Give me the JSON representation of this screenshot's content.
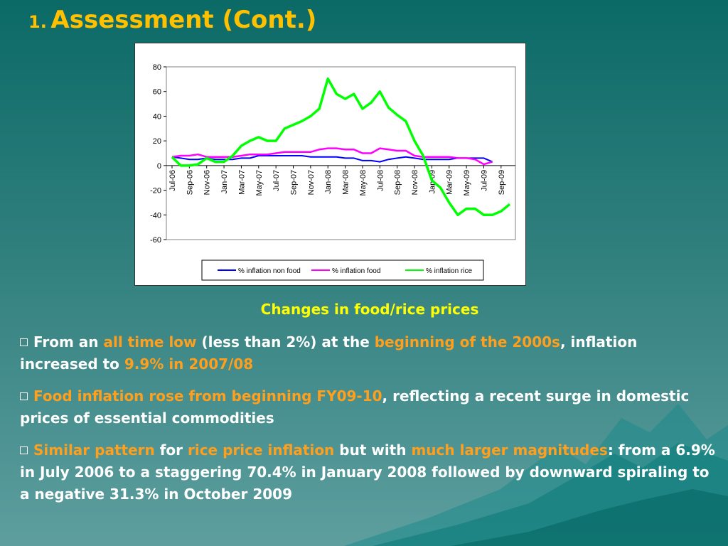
{
  "slide": {
    "title_number": "1.",
    "title_text": "Assessment (Cont.)",
    "caption": "Changes in food/rice prices"
  },
  "bullets": [
    [
      {
        "text": "From an ",
        "hl": false
      },
      {
        "text": "all time low",
        "hl": true
      },
      {
        "text": " (less than 2%) at the ",
        "hl": false
      },
      {
        "text": "beginning of the 2000s",
        "hl": true
      },
      {
        "text": ", inflation increased to ",
        "hl": false
      },
      {
        "text": "9.9% in 2007/08",
        "hl": true
      }
    ],
    [
      {
        "text": "Food inflation rose from beginning FY09-10",
        "hl": true
      },
      {
        "text": ", reflecting a recent surge in domestic prices of essential commodities",
        "hl": false
      }
    ],
    [
      {
        "text": "Similar pattern",
        "hl": true
      },
      {
        "text": " for ",
        "hl": false
      },
      {
        "text": "rice price inflation",
        "hl": true
      },
      {
        "text": " but with ",
        "hl": false
      },
      {
        "text": "much larger magnitudes",
        "hl": true
      },
      {
        "text": ": from a 6.9% in July 2006 to a staggering 70.4% in January 2008 followed by downward spiraling to a negative 31.3% in October 2009",
        "hl": false
      }
    ]
  ],
  "colors": {
    "title": "#ffc000",
    "caption": "#ffff00",
    "highlight": "#ff9f1c",
    "non_food": "#0000ff",
    "food": "#ff00ff",
    "rice": "#00ff00"
  },
  "chart_data": {
    "type": "line",
    "title": "",
    "xlabel": "",
    "ylabel": "",
    "ylim": [
      -60,
      80
    ],
    "yticks": [
      80,
      60,
      40,
      20,
      0,
      -20,
      -40,
      -60
    ],
    "x": [
      "Jul-06",
      "Aug-06",
      "Sep-06",
      "Oct-06",
      "Nov-06",
      "Dec-06",
      "Jan-07",
      "Feb-07",
      "Mar-07",
      "Apr-07",
      "May-07",
      "Jun-07",
      "Jul-07",
      "Aug-07",
      "Sep-07",
      "Oct-07",
      "Nov-07",
      "Dec-07",
      "Jan-08",
      "Feb-08",
      "Mar-08",
      "Apr-08",
      "May-08",
      "Jun-08",
      "Jul-08",
      "Aug-08",
      "Sep-08",
      "Oct-08",
      "Nov-08",
      "Dec-08",
      "Jan-09",
      "Feb-09",
      "Mar-09",
      "Apr-09",
      "May-09",
      "Jun-09",
      "Jul-09",
      "Aug-09",
      "Sep-09",
      "Oct-09"
    ],
    "tick_labels": [
      "Jul-06",
      "Sep-06",
      "Nov-06",
      "Jan-07",
      "Mar-07",
      "May-07",
      "Jul-07",
      "Sep-07",
      "Nov-07",
      "Jan-08",
      "Mar-08",
      "May-08",
      "Jul-08",
      "Sep-08",
      "Nov-08",
      "Jan-09",
      "Mar-09",
      "May-09",
      "Jul-09",
      "Sep-09"
    ],
    "legend_position": "bottom",
    "grid": false,
    "series": [
      {
        "name": "% inflation non food",
        "color": "#0000ff",
        "values": [
          7,
          6,
          5,
          5,
          6,
          5,
          5,
          5,
          6,
          6,
          8,
          8,
          8,
          8,
          8,
          8,
          7,
          7,
          7,
          7,
          6,
          6,
          4,
          4,
          3,
          5,
          6,
          7,
          6,
          5,
          5,
          5,
          5,
          6,
          6,
          6,
          6,
          3,
          null,
          null
        ]
      },
      {
        "name": "% inflation food",
        "color": "#ff00ff",
        "values": [
          7,
          8,
          8,
          9,
          7,
          7,
          7,
          7,
          8,
          9,
          9,
          9,
          10,
          11,
          11,
          11,
          11,
          13,
          14,
          14,
          13,
          13,
          10,
          10,
          14,
          13,
          12,
          12,
          8,
          7,
          7,
          7,
          7,
          6,
          6,
          5,
          1,
          3,
          null,
          null
        ]
      },
      {
        "name": "% inflation rice",
        "color": "#00ff00",
        "values": [
          6.9,
          0,
          0,
          1,
          6,
          3,
          3,
          8,
          16,
          20,
          23,
          20,
          20,
          30,
          33,
          36,
          40,
          46,
          70.4,
          58,
          54,
          58,
          46,
          51,
          60,
          47,
          41,
          36,
          20,
          8,
          -12,
          -18,
          -30,
          -40,
          -35,
          -35,
          -40,
          -40,
          -37,
          -31.3
        ]
      }
    ]
  }
}
